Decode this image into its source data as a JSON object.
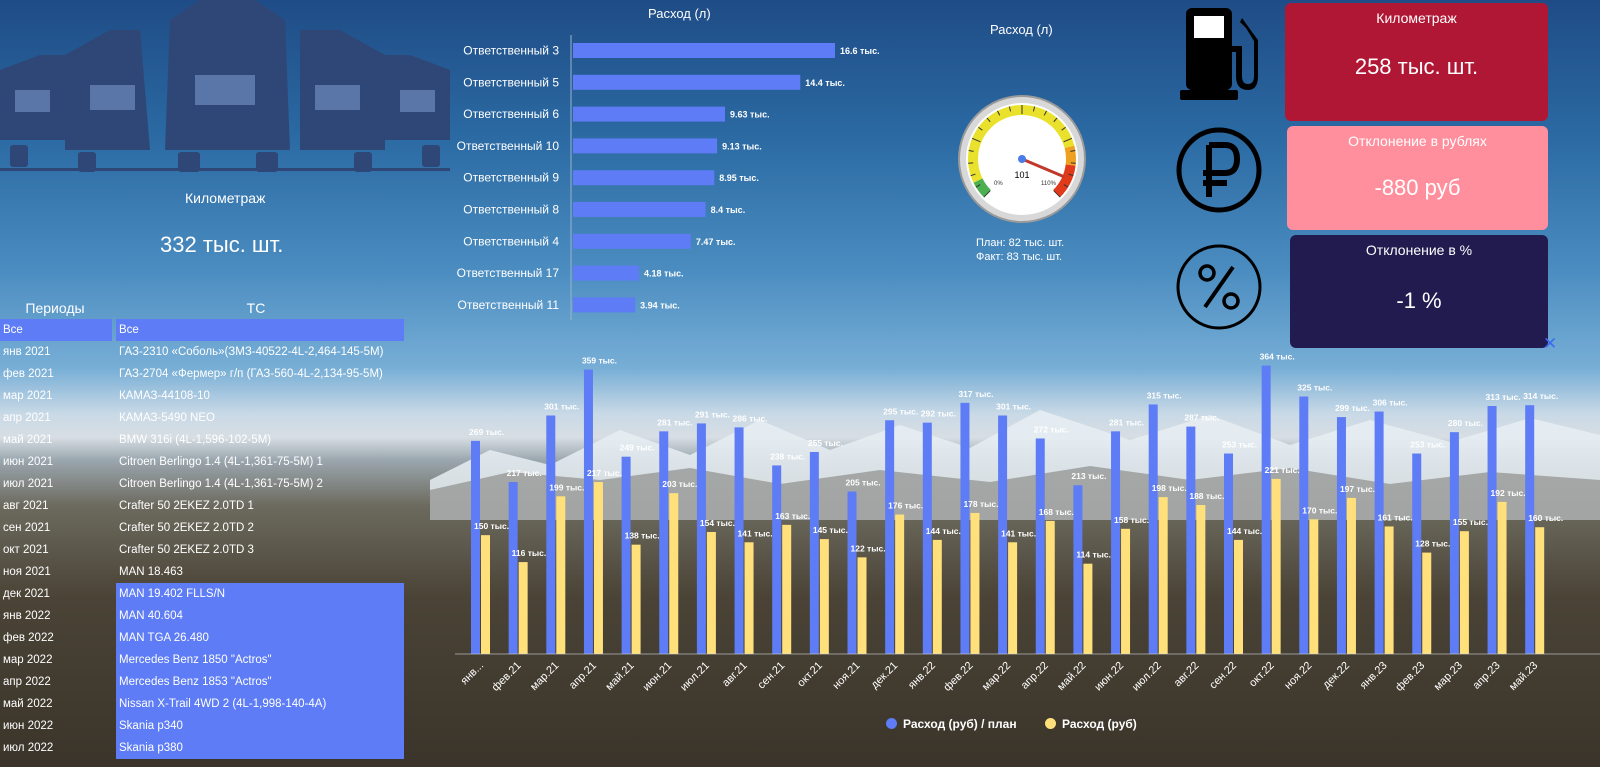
{
  "kpi_left": {
    "title": "Километраж",
    "value": "332 тыс. шт."
  },
  "periods": {
    "header": "Периоды",
    "items": [
      "Все",
      "янв 2021",
      "фев 2021",
      "мар 2021",
      "апр 2021",
      "май 2021",
      "июн 2021",
      "июл 2021",
      "авг 2021",
      "сен 2021",
      "окт 2021",
      "ноя 2021",
      "дек 2021",
      "янв 2022",
      "фев 2022",
      "мар 2022",
      "апр 2022",
      "май 2022",
      "июн 2022",
      "июл 2022"
    ]
  },
  "vehicles": {
    "header": "ТС",
    "items": [
      "Все",
      "ГАЗ-2310 «Соболь»(ЗМЗ-40522-4L-2,464-145-5М)",
      "ГАЗ-2704 «Фермер» г/п (ГАЗ-560-4L-2,134-95-5М)",
      "КАМАЗ-44108-10",
      "КАМАЗ-5490 NEO",
      "BMW 316i (4L-1,596-102-5М)",
      "Citroen Berlingo 1.4 (4L-1,361-75-5М) 1",
      "Citroen Berlingo 1.4 (4L-1,361-75-5М) 2",
      "Crafter 50 2EKEZ 2.0TD 1",
      "Crafter 50 2EKEZ 2.0TD 2",
      "Crafter 50 2EKEZ 2.0TD 3",
      "MAN 18.463",
      "MAN 19.402 FLLS/N",
      "MAN 40.604",
      "MAN TGA 26.480",
      "Mercedes Benz 1850 \"Actros\"",
      "Mercedes Benz 1853 \"Actros\"",
      "Nissan X-Trail 4WD 2 (4L-1,998-140-4А)",
      "Skania p340",
      "Skania p380"
    ]
  },
  "hbar": {
    "title": "Расход (л)",
    "items": [
      {
        "label": "Ответственный 3",
        "value": 16.6,
        "text": "16.6 тыс."
      },
      {
        "label": "Ответственный 5",
        "value": 14.4,
        "text": "14.4 тыс."
      },
      {
        "label": "Ответственный 6",
        "value": 9.63,
        "text": "9.63 тыс."
      },
      {
        "label": "Ответственный 10",
        "value": 9.13,
        "text": "9.13 тыс."
      },
      {
        "label": "Ответственный 9",
        "value": 8.95,
        "text": "8.95 тыс."
      },
      {
        "label": "Ответственный 8",
        "value": 8.4,
        "text": "8.4 тыс."
      },
      {
        "label": "Ответственный 4",
        "value": 7.47,
        "text": "7.47 тыс."
      },
      {
        "label": "Ответственный 17",
        "value": 4.18,
        "text": "4.18 тыс."
      },
      {
        "label": "Ответственный 11",
        "value": 3.94,
        "text": "3.94 тыс."
      }
    ],
    "max": 16.6
  },
  "gauge": {
    "title": "Расход (л)",
    "value": 101,
    "value_text": "101",
    "min_label": "0%",
    "max_label": "110%",
    "plan": "План: 82 тыс. шт.",
    "fact": "Факт: 83 тыс. шт."
  },
  "cards": {
    "km": {
      "title": "Километраж",
      "value": "258 тыс. шт.",
      "color": "#b01735"
    },
    "rub": {
      "title": "Отклонение в рублях",
      "value": "-880 руб",
      "color": "#ff8f9c"
    },
    "pct": {
      "title": "Отклонение в %",
      "value": "-1 %",
      "color": "#221b4f"
    }
  },
  "icons": [
    "truck-fleet-icon",
    "fuel-pump-icon",
    "ruble-icon",
    "percent-icon",
    "close-icon"
  ],
  "close_label": "✕",
  "legend": {
    "plan": "Расход (руб) / план",
    "fact": "Расход (руб)",
    "plan_color": "#5d7cf5",
    "fact_color": "#ffe07a"
  },
  "chart_data": {
    "type": "bar",
    "categories": [
      "янв...",
      "фев.21",
      "мар.21",
      "апр.21",
      "май.21",
      "июн.21",
      "июл.21",
      "авг.21",
      "сен.21",
      "окт.21",
      "ноя.21",
      "дек.21",
      "янв.22",
      "фев.22",
      "мар.22",
      "апр.22",
      "май.22",
      "июн.22",
      "июл.22",
      "авг.22",
      "сен.22",
      "окт.22",
      "ноя.22",
      "дек.22",
      "янв.23",
      "фев.23",
      "мар.23",
      "апр.23",
      "май.23"
    ],
    "series": [
      {
        "name": "Расход (руб) / план",
        "values": [
          269,
          217,
          301,
          359,
          249,
          281,
          291,
          286,
          238,
          255,
          205,
          295,
          292,
          317,
          301,
          272,
          213,
          281,
          315,
          287,
          253,
          364,
          325,
          299,
          306,
          253,
          280,
          313,
          314
        ]
      },
      {
        "name": "Расход (руб)",
        "values": [
          150,
          116,
          199,
          217,
          138,
          203,
          154,
          141,
          163,
          145,
          122,
          176,
          144,
          178,
          141,
          168,
          114,
          158,
          198,
          188,
          144,
          221,
          170,
          197,
          161,
          128,
          155,
          192,
          160
        ]
      }
    ],
    "ylim": [
      0,
      400
    ],
    "data_label_suffix": " тыс."
  }
}
